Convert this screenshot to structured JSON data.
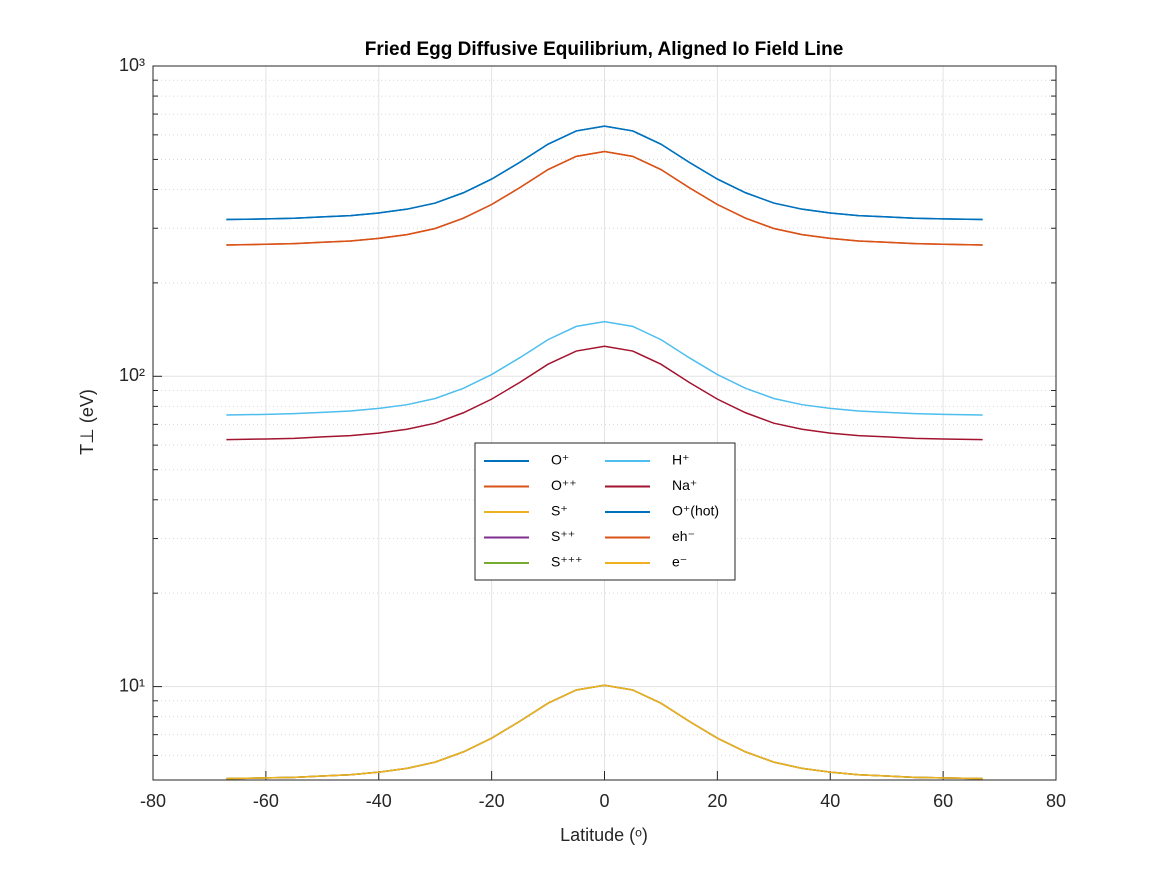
{
  "chart_data": {
    "type": "line",
    "title": "Fried Egg Diffusive Equilibrium, Aligned Io Field Line",
    "xlabel": "Latitude (ᵒ)",
    "ylabel": "T⊥  (eV)",
    "ylog": true,
    "grid": true,
    "minor_grid": true,
    "xlim": [
      -80,
      80
    ],
    "xticks": [
      -80,
      -60,
      -40,
      -20,
      0,
      20,
      40,
      60,
      80
    ],
    "ylim": [
      5,
      1000
    ],
    "yticks": [
      {
        "value": 10,
        "label": "10¹"
      },
      {
        "value": 100,
        "label": "10²"
      },
      {
        "value": 1000,
        "label": "10³"
      }
    ],
    "x": [
      -67,
      -60,
      -55,
      -50,
      -45,
      -40,
      -35,
      -30,
      -25,
      -20,
      -15,
      -10,
      -5,
      0,
      5,
      10,
      15,
      20,
      25,
      30,
      35,
      40,
      45,
      50,
      55,
      60,
      67
    ],
    "series": [
      {
        "name": "O⁺",
        "color": "#0072bd",
        "values": [
          320,
          321.6,
          323.2,
          326.4,
          329.6,
          336,
          345.6,
          361.6,
          390.4,
          432,
          489.6,
          560,
          617.6,
          640,
          617.6,
          560,
          489.6,
          432,
          390.4,
          361.6,
          345.6,
          336,
          329.6,
          326.4,
          323.2,
          321.6,
          320
        ]
      },
      {
        "name": "O⁺⁺",
        "color": "#d95319",
        "values": [
          265,
          266.3,
          267.7,
          270.3,
          273,
          278.3,
          286.2,
          299.5,
          323.3,
          357.8,
          405.5,
          463.8,
          511.5,
          530,
          511.5,
          463.8,
          405.5,
          357.8,
          323.3,
          299.5,
          286.2,
          278.3,
          273,
          270.3,
          267.7,
          266.3,
          265
        ]
      },
      {
        "name": "S⁺",
        "color": "#edb120",
        "values": [
          5.05,
          5.08,
          5.1,
          5.15,
          5.2,
          5.3,
          5.45,
          5.71,
          6.16,
          6.82,
          7.73,
          8.84,
          9.75,
          10.1,
          9.75,
          8.84,
          7.73,
          6.82,
          6.16,
          5.71,
          5.45,
          5.3,
          5.2,
          5.15,
          5.1,
          5.08,
          5.05
        ]
      },
      {
        "name": "S⁺⁺",
        "color": "#7e2f8e",
        "values": [
          5.05,
          5.08,
          5.1,
          5.15,
          5.2,
          5.3,
          5.45,
          5.71,
          6.16,
          6.82,
          7.73,
          8.84,
          9.75,
          10.1,
          9.75,
          8.84,
          7.73,
          6.82,
          6.16,
          5.71,
          5.45,
          5.3,
          5.2,
          5.15,
          5.1,
          5.08,
          5.05
        ]
      },
      {
        "name": "S⁺⁺⁺",
        "color": "#77ac30",
        "values": [
          5.05,
          5.08,
          5.1,
          5.15,
          5.2,
          5.3,
          5.45,
          5.71,
          6.16,
          6.82,
          7.73,
          8.84,
          9.75,
          10.1,
          9.75,
          8.84,
          7.73,
          6.82,
          6.16,
          5.71,
          5.45,
          5.3,
          5.2,
          5.15,
          5.1,
          5.08,
          5.05
        ]
      },
      {
        "name": "H⁺",
        "color": "#4dbeee",
        "values": [
          75,
          75.4,
          75.8,
          76.5,
          77.3,
          78.8,
          81,
          84.8,
          91.5,
          101.3,
          114.8,
          131.3,
          144.8,
          150,
          144.8,
          131.3,
          114.8,
          101.3,
          91.5,
          84.8,
          81,
          78.8,
          77.3,
          76.5,
          75.8,
          75.4,
          75
        ]
      },
      {
        "name": "Na⁺",
        "color": "#a2142f",
        "values": [
          62.5,
          62.8,
          63.1,
          63.8,
          64.4,
          65.6,
          67.5,
          70.6,
          76.3,
          84.4,
          95.6,
          109.4,
          120.6,
          125,
          120.6,
          109.4,
          95.6,
          84.4,
          76.3,
          70.6,
          67.5,
          65.6,
          64.4,
          63.8,
          63.1,
          62.8,
          62.5
        ]
      },
      {
        "name": "O⁺(hot)",
        "color": "#0072bd",
        "values": [
          320,
          321.6,
          323.2,
          326.4,
          329.6,
          336,
          345.6,
          361.6,
          390.4,
          432,
          489.6,
          560,
          617.6,
          640,
          617.6,
          560,
          489.6,
          432,
          390.4,
          361.6,
          345.6,
          336,
          329.6,
          326.4,
          323.2,
          321.6,
          320
        ]
      },
      {
        "name": "eh⁻",
        "color": "#d95319",
        "values": [
          265,
          266.3,
          267.7,
          270.3,
          273,
          278.3,
          286.2,
          299.5,
          323.3,
          357.8,
          405.5,
          463.8,
          511.5,
          530,
          511.5,
          463.8,
          405.5,
          357.8,
          323.3,
          299.5,
          286.2,
          278.3,
          273,
          270.3,
          267.7,
          266.3,
          265
        ]
      },
      {
        "name": "e⁻",
        "color": "#edb120",
        "values": [
          5.05,
          5.08,
          5.1,
          5.15,
          5.2,
          5.3,
          5.45,
          5.71,
          6.16,
          6.82,
          7.73,
          8.84,
          9.75,
          10.1,
          9.75,
          8.84,
          7.73,
          6.82,
          6.16,
          5.71,
          5.45,
          5.3,
          5.2,
          5.15,
          5.1,
          5.08,
          5.05
        ]
      }
    ]
  }
}
